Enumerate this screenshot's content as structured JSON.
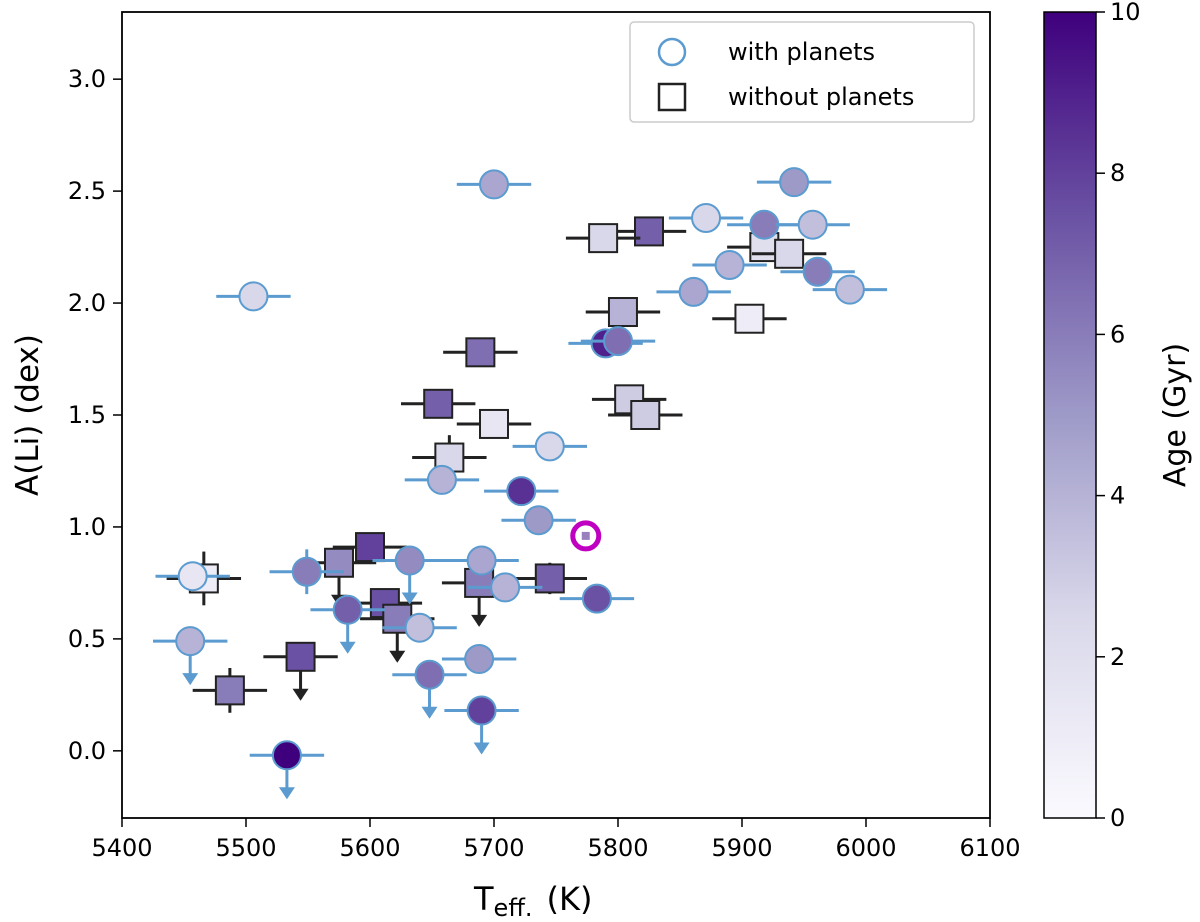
{
  "chart_data": {
    "type": "scatter",
    "xlabel_main": "T",
    "xlabel_sub": "eff.",
    "xlabel_unit": "(K)",
    "ylabel": "A(Li) (dex)",
    "xlim": [
      5400,
      6100
    ],
    "ylim": [
      -0.3,
      3.3
    ],
    "xticks": [
      5400,
      5500,
      5600,
      5700,
      5800,
      5900,
      6000,
      6100
    ],
    "yticks": [
      0.0,
      0.5,
      1.0,
      1.5,
      2.0,
      2.5,
      3.0
    ],
    "legend": {
      "position": "top-right",
      "entries": [
        {
          "label": "with planets",
          "marker": "circle",
          "edge_color": "#5b9bd0"
        },
        {
          "label": "without planets",
          "marker": "square",
          "edge_color": "#222222"
        }
      ]
    },
    "colorbar": {
      "label": "Age (Gyr)",
      "min": 0,
      "max": 10,
      "ticks": [
        0,
        2,
        4,
        6,
        8,
        10
      ],
      "color_low": "#fbfaff",
      "color_high": "#3f007d"
    },
    "colors": {
      "with_planets_edge": "#5b9bd0",
      "without_planets_edge": "#222222",
      "highlight": "#c000c0"
    },
    "with_planets": [
      {
        "teff": 5700,
        "ali": 2.53,
        "age": 4.5,
        "xerr": 30
      },
      {
        "teff": 5506,
        "ali": 2.03,
        "age": 2.5,
        "xerr": 30
      },
      {
        "teff": 5942,
        "ali": 2.54,
        "age": 5.0,
        "xerr": 30
      },
      {
        "teff": 5871,
        "ali": 2.38,
        "age": 2.5,
        "xerr": 30
      },
      {
        "teff": 5918,
        "ali": 2.35,
        "age": 6.0,
        "xerr": 30
      },
      {
        "teff": 5957,
        "ali": 2.35,
        "age": 3.5,
        "xerr": 30
      },
      {
        "teff": 5890,
        "ali": 2.17,
        "age": 4.0,
        "xerr": 30
      },
      {
        "teff": 5961,
        "ali": 2.14,
        "age": 6.0,
        "xerr": 30
      },
      {
        "teff": 5861,
        "ali": 2.05,
        "age": 4.5,
        "xerr": 30
      },
      {
        "teff": 5987,
        "ali": 2.06,
        "age": 3.5,
        "xerr": 30
      },
      {
        "teff": 5790,
        "ali": 1.82,
        "age": 9.0,
        "xerr": 30
      },
      {
        "teff": 5800,
        "ali": 1.83,
        "age": 6.5,
        "xerr": 30
      },
      {
        "teff": 5745,
        "ali": 1.36,
        "age": 2.5,
        "xerr": 30
      },
      {
        "teff": 5658,
        "ali": 1.21,
        "age": 4.0,
        "xerr": 30
      },
      {
        "teff": 5722,
        "ali": 1.16,
        "age": 8.5,
        "xerr": 30
      },
      {
        "teff": 5736,
        "ali": 1.03,
        "age": 5.0,
        "xerr": 30
      },
      {
        "teff": 5549,
        "ali": 0.8,
        "age": 6.0,
        "xerr": 30,
        "yerr": 0.1
      },
      {
        "teff": 5632,
        "ali": 0.85,
        "age": 5.5,
        "xerr": 30,
        "upper_limit": true
      },
      {
        "teff": 5690,
        "ali": 0.85,
        "age": 4.5,
        "xerr": 30
      },
      {
        "teff": 5709,
        "ali": 0.73,
        "age": 4.0,
        "xerr": 30
      },
      {
        "teff": 5783,
        "ali": 0.68,
        "age": 7.5,
        "xerr": 30
      },
      {
        "teff": 5582,
        "ali": 0.63,
        "age": 7.0,
        "xerr": 30,
        "upper_limit": true
      },
      {
        "teff": 5640,
        "ali": 0.55,
        "age": 3.5,
        "xerr": 30
      },
      {
        "teff": 5455,
        "ali": 0.49,
        "age": 4.0,
        "xerr": 30,
        "upper_limit": true
      },
      {
        "teff": 5688,
        "ali": 0.41,
        "age": 5.0,
        "xerr": 30
      },
      {
        "teff": 5648,
        "ali": 0.34,
        "age": 6.5,
        "xerr": 30,
        "upper_limit": true
      },
      {
        "teff": 5690,
        "ali": 0.18,
        "age": 8.0,
        "xerr": 30,
        "upper_limit": true
      },
      {
        "teff": 5533,
        "ali": -0.02,
        "age": 10.0,
        "xerr": 30,
        "upper_limit": true
      },
      {
        "teff": 5457,
        "ali": 0.78,
        "age": 1.5,
        "xerr": 30
      }
    ],
    "without_planets": [
      {
        "teff": 5825,
        "ali": 2.32,
        "age": 7.0,
        "xerr": 30
      },
      {
        "teff": 5788,
        "ali": 2.29,
        "age": 2.5,
        "xerr": 30
      },
      {
        "teff": 5918,
        "ali": 2.25,
        "age": 2.0,
        "xerr": 30
      },
      {
        "teff": 5938,
        "ali": 2.22,
        "age": 2.5,
        "xerr": 30
      },
      {
        "teff": 5804,
        "ali": 1.96,
        "age": 4.0,
        "xerr": 30
      },
      {
        "teff": 5906,
        "ali": 1.93,
        "age": 1.0,
        "xerr": 30
      },
      {
        "teff": 5689,
        "ali": 1.78,
        "age": 6.5,
        "xerr": 30
      },
      {
        "teff": 5655,
        "ali": 1.55,
        "age": 7.0,
        "xerr": 30
      },
      {
        "teff": 5809,
        "ali": 1.57,
        "age": 3.0,
        "xerr": 30
      },
      {
        "teff": 5822,
        "ali": 1.5,
        "age": 3.0,
        "xerr": 30
      },
      {
        "teff": 5700,
        "ali": 1.46,
        "age": 1.5,
        "xerr": 30
      },
      {
        "teff": 5664,
        "ali": 1.31,
        "age": 2.5,
        "xerr": 30,
        "yerr": 0.1
      },
      {
        "teff": 5600,
        "ali": 0.91,
        "age": 8.0,
        "xerr": 30
      },
      {
        "teff": 5575,
        "ali": 0.84,
        "age": 5.5,
        "xerr": 30,
        "upper_limit": true
      },
      {
        "teff": 5612,
        "ali": 0.66,
        "age": 7.5,
        "xerr": 30
      },
      {
        "teff": 5622,
        "ali": 0.59,
        "age": 6.0,
        "xerr": 30,
        "upper_limit": true
      },
      {
        "teff": 5688,
        "ali": 0.75,
        "age": 6.0,
        "xerr": 30,
        "upper_limit": true
      },
      {
        "teff": 5745,
        "ali": 0.77,
        "age": 7.0,
        "xerr": 30,
        "yerr": 0.07
      },
      {
        "teff": 5466,
        "ali": 0.77,
        "age": 1.0,
        "xerr": 30,
        "yerr": 0.12
      },
      {
        "teff": 5544,
        "ali": 0.42,
        "age": 7.5,
        "xerr": 30,
        "upper_limit": true
      },
      {
        "teff": 5487,
        "ali": 0.27,
        "age": 6.0,
        "xerr": 30,
        "yerr": 0.1
      }
    ],
    "highlight": {
      "teff": 5774,
      "ali": 0.96
    }
  }
}
